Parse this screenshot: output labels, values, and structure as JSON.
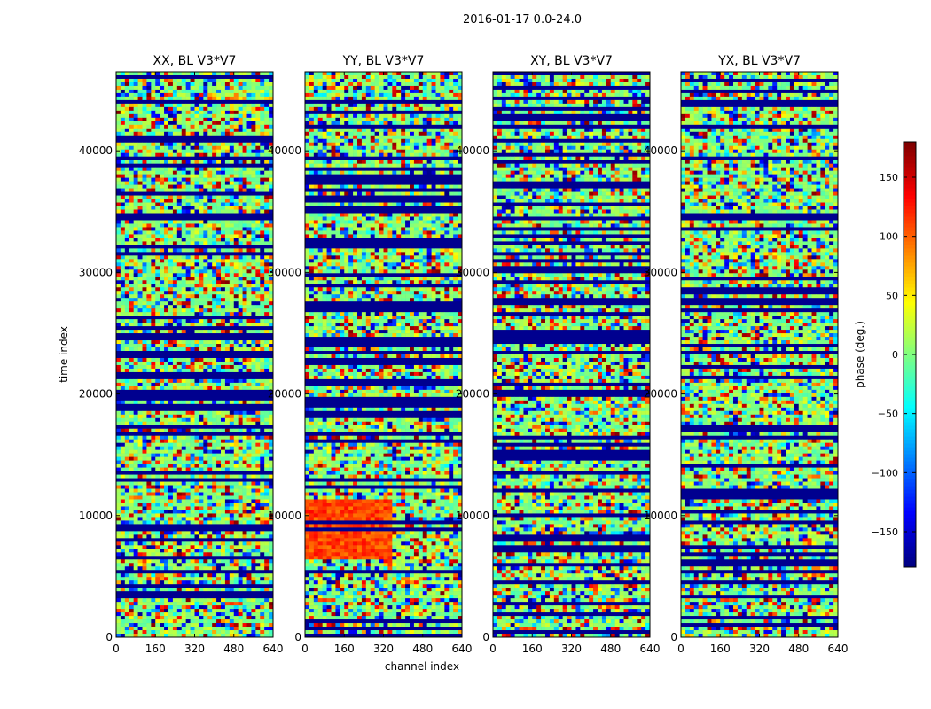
{
  "chart_data": {
    "type": "heatmap",
    "suptitle": "2016-01-17 0.0-24.0",
    "panels": [
      {
        "title": "XX, BL V3*V7"
      },
      {
        "title": "YY, BL V3*V7"
      },
      {
        "title": "XY, BL V3*V7"
      },
      {
        "title": "YX, BL V3*V7"
      }
    ],
    "xlabel": "channel index",
    "ylabel": "time index",
    "xlim": [
      0,
      640
    ],
    "ylim": [
      0,
      46500
    ],
    "xticks": [
      0,
      160,
      320,
      480,
      640
    ],
    "yticks": [
      0,
      10000,
      20000,
      30000,
      40000
    ],
    "colorbar": {
      "label": "phase (deg.)",
      "range": [
        -180,
        180
      ],
      "ticks": [
        -150,
        -100,
        -50,
        0,
        50,
        100,
        150
      ],
      "tick_labels": [
        "−150",
        "−100",
        "−50",
        "0",
        "50",
        "100",
        "150"
      ],
      "colormap": "jet"
    }
  }
}
